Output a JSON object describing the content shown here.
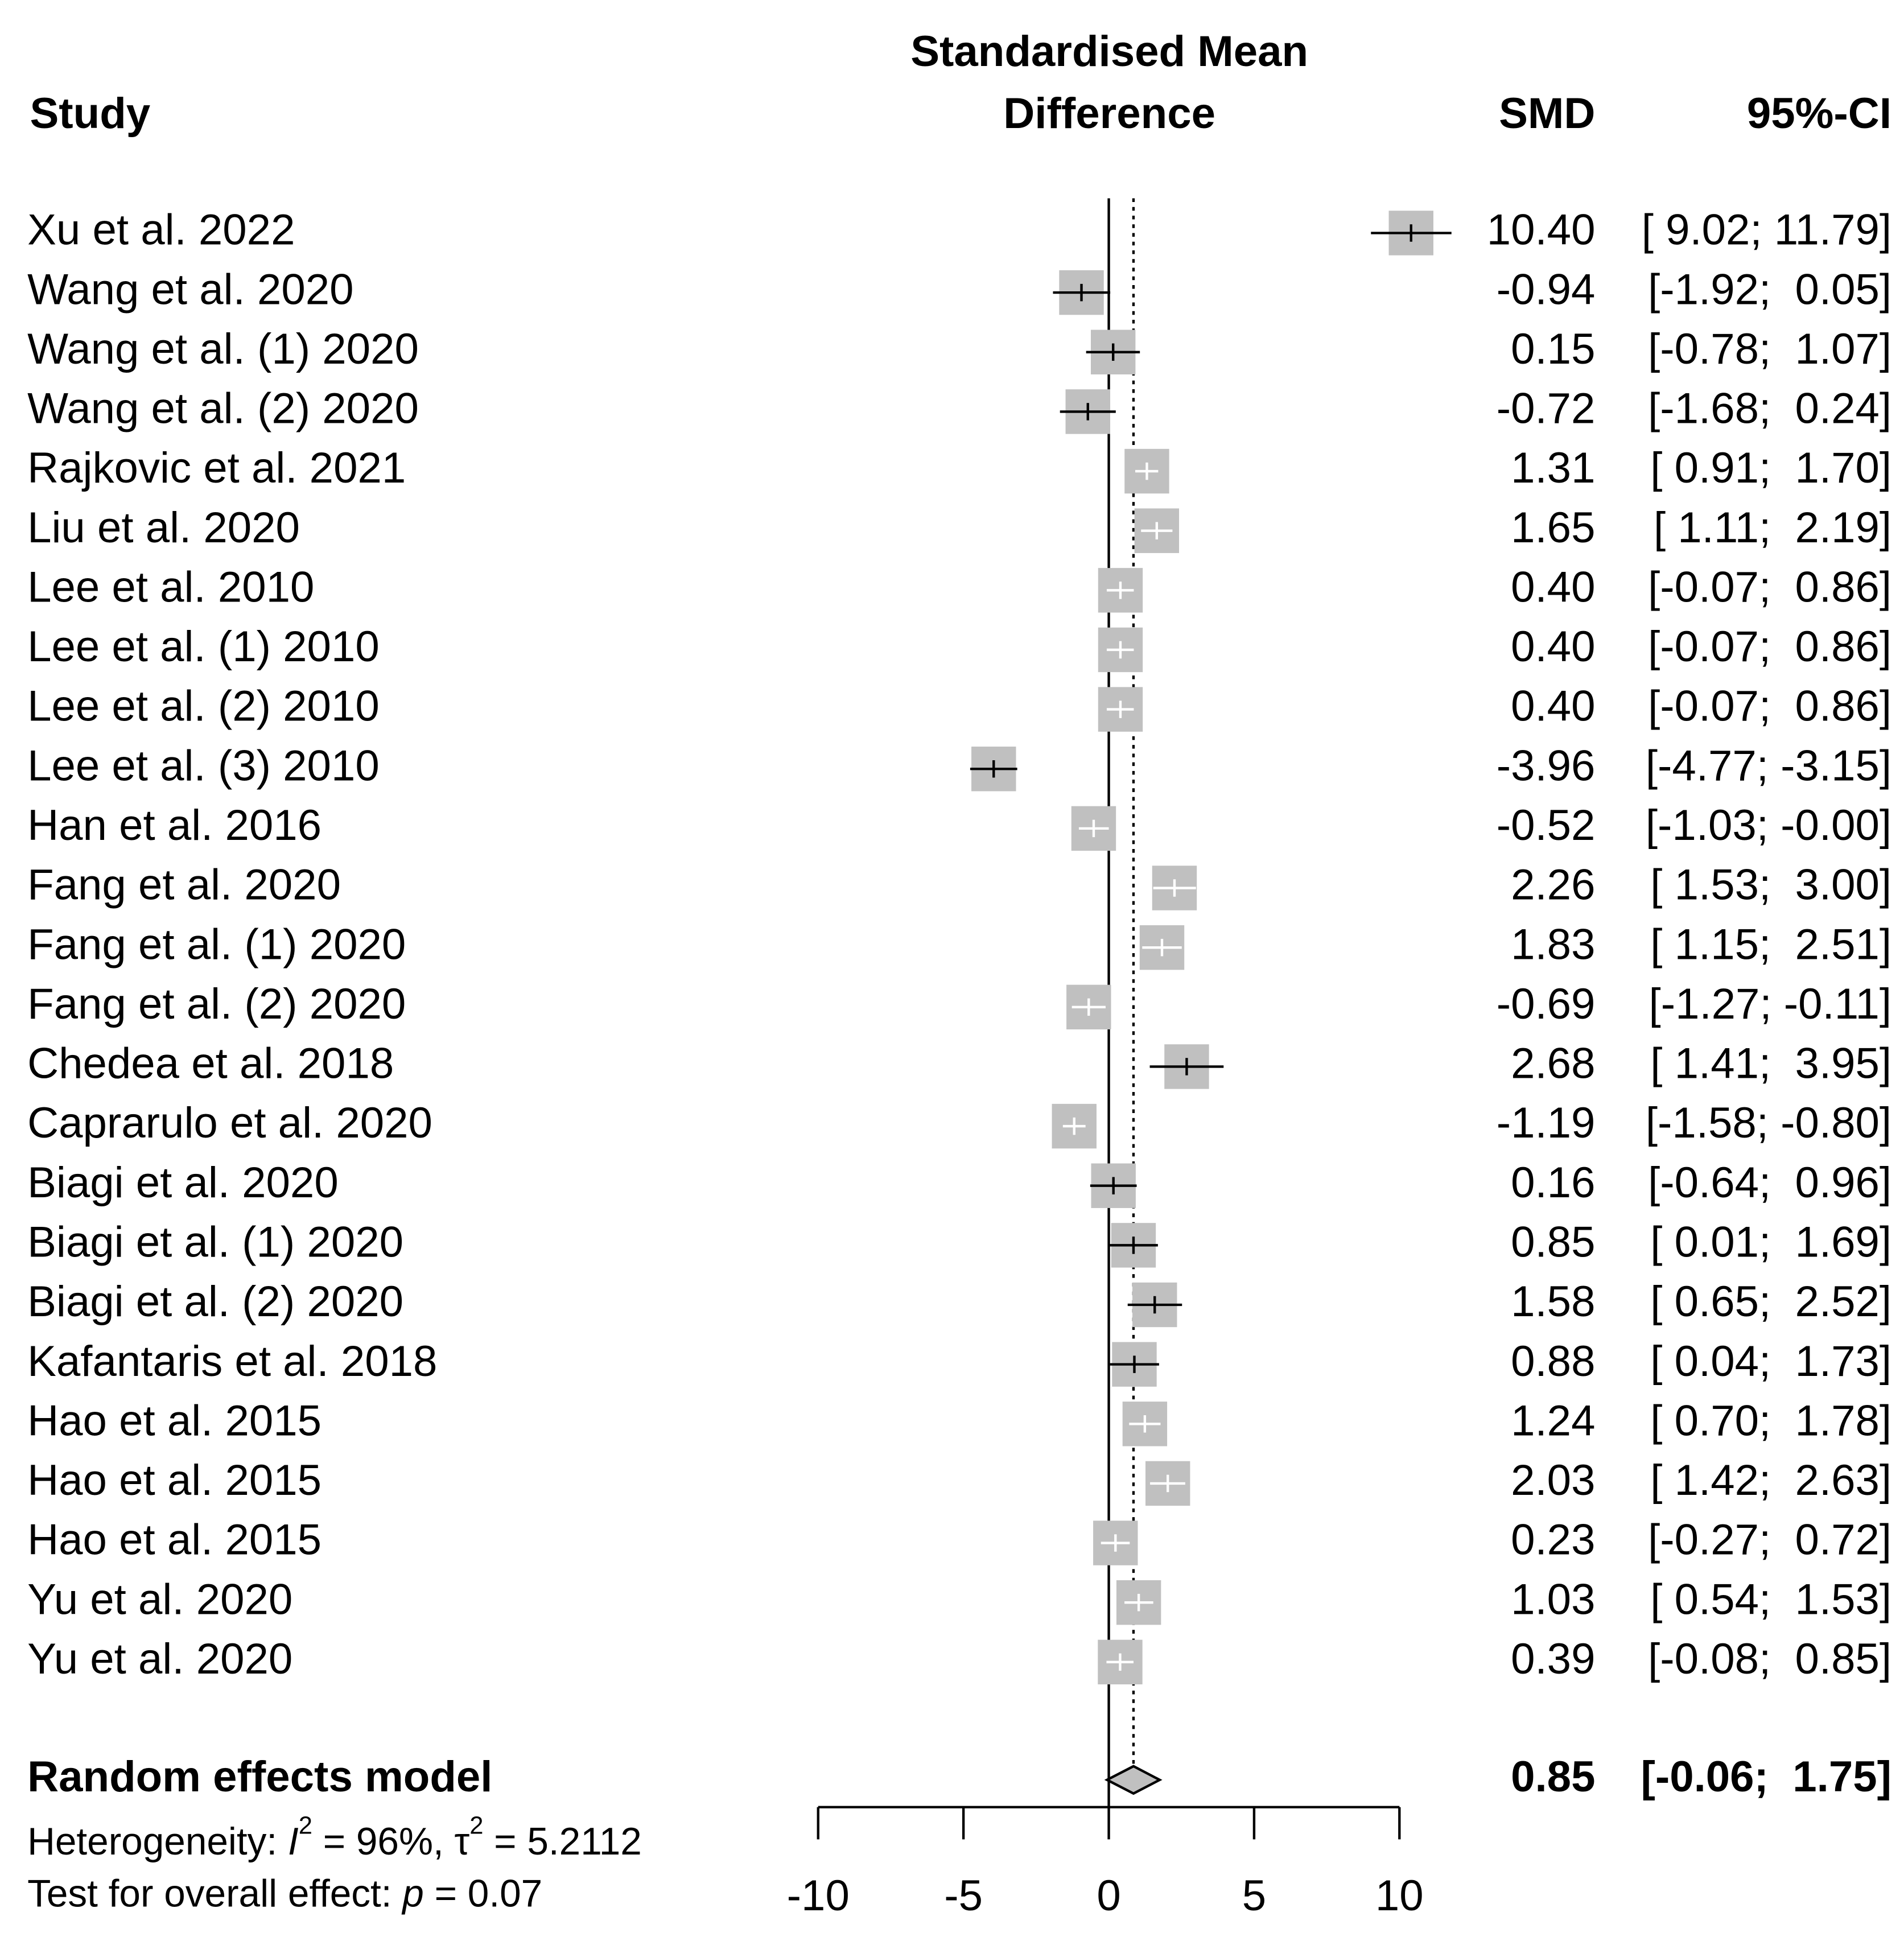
{
  "chart_data": {
    "type": "forest",
    "headers": {
      "study": "Study",
      "plot": [
        "Standardised Mean",
        "Difference"
      ],
      "smd": "SMD",
      "ci": "95%-CI"
    },
    "studies": [
      "Xu et al. 2022",
      "Wang et al. 2020",
      "Wang et al. (1) 2020",
      "Wang et al. (2) 2020",
      "Rajkovic et al. 2021",
      "Liu et al. 2020",
      "Lee et al. 2010",
      "Lee et al. (1) 2010",
      "Lee et al. (2) 2010",
      "Lee et al. (3) 2010",
      "Han et al. 2016",
      "Fang et al. 2020",
      "Fang et al. (1) 2020",
      "Fang et al. (2) 2020",
      "Chedea et al. 2018",
      "Caprarulo et al. 2020",
      "Biagi et al. 2020",
      "Biagi et al. (1) 2020",
      "Biagi et al. (2) 2020",
      "Kafantaris et al. 2018",
      "Hao et al. 2015",
      "Hao et al. 2015",
      "Hao et al. 2015",
      "Yu et al. 2020",
      "Yu et al. 2020"
    ],
    "smd": [
      10.4,
      -0.94,
      0.15,
      -0.72,
      1.31,
      1.65,
      0.4,
      0.4,
      0.4,
      -3.96,
      -0.52,
      2.26,
      1.83,
      -0.69,
      2.68,
      -1.19,
      0.16,
      0.85,
      1.58,
      0.88,
      1.24,
      2.03,
      0.23,
      1.03,
      0.39
    ],
    "smd_labels": [
      "10.40",
      "-0.94",
      "0.15",
      "-0.72",
      "1.31",
      "1.65",
      "0.40",
      "0.40",
      "0.40",
      "-3.96",
      "-0.52",
      "2.26",
      "1.83",
      "-0.69",
      "2.68",
      "-1.19",
      "0.16",
      "0.85",
      "1.58",
      "0.88",
      "1.24",
      "2.03",
      "0.23",
      "1.03",
      "0.39"
    ],
    "ci_lower": [
      9.02,
      -1.92,
      -0.78,
      -1.68,
      0.91,
      1.11,
      -0.07,
      -0.07,
      -0.07,
      -4.77,
      -1.03,
      1.53,
      1.15,
      -1.27,
      1.41,
      -1.58,
      -0.64,
      0.01,
      0.65,
      0.04,
      0.7,
      1.42,
      -0.27,
      0.54,
      -0.08
    ],
    "ci_upper": [
      11.79,
      0.05,
      1.07,
      0.24,
      1.7,
      2.19,
      0.86,
      0.86,
      0.86,
      -3.15,
      0,
      3.0,
      2.51,
      -0.11,
      3.95,
      -0.8,
      0.96,
      1.69,
      2.52,
      1.73,
      1.78,
      2.63,
      0.72,
      1.53,
      0.85
    ],
    "ci_labels": [
      "[ 9.02; 11.79]",
      "[-1.92;  0.05]",
      "[-0.78;  1.07]",
      "[-1.68;  0.24]",
      "[ 0.91;  1.70]",
      "[ 1.11;  2.19]",
      "[-0.07;  0.86]",
      "[-0.07;  0.86]",
      "[-0.07;  0.86]",
      "[-4.77; -3.15]",
      "[-1.03; -0.00]",
      "[ 1.53;  3.00]",
      "[ 1.15;  2.51]",
      "[-1.27; -0.11]",
      "[ 1.41;  3.95]",
      "[-1.58; -0.80]",
      "[-0.64;  0.96]",
      "[ 0.01;  1.69]",
      "[ 0.65;  2.52]",
      "[ 0.04;  1.73]",
      "[ 0.70;  1.78]",
      "[ 1.42;  2.63]",
      "[-0.27;  0.72]",
      "[ 0.54;  1.53]",
      "[-0.08;  0.85]"
    ],
    "pooled": {
      "label": "Random effects model",
      "smd": 0.85,
      "smd_label": "0.85",
      "ci_lower": -0.06,
      "ci_upper": 1.75,
      "ci_label": "[-0.06;  1.75]"
    },
    "heterogeneity": {
      "prefix": "Heterogeneity: ",
      "i2_symbol": "I",
      "superscript": "2",
      "i2": " = 96%, ",
      "tau2_symbol": "τ",
      "tau2": " = 5.2112"
    },
    "overall_effect": {
      "prefix": "Test for overall effect:  ",
      "p_symbol": "p",
      "p": " = 0.07"
    },
    "xlim": [
      -10,
      10
    ],
    "xticks": [
      -10,
      -5,
      0,
      5,
      10
    ],
    "box_color": "#c0c0c0"
  }
}
